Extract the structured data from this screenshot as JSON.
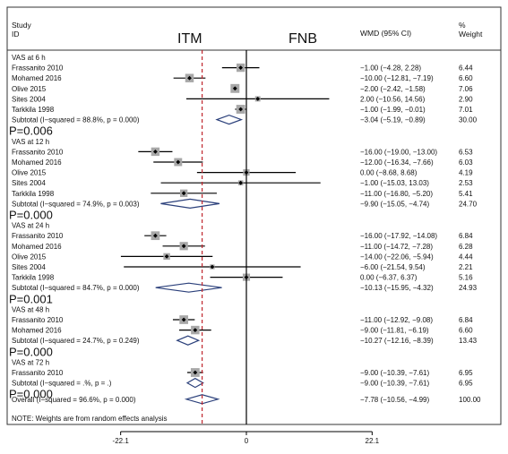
{
  "header": {
    "study_line1": "Study",
    "study_line2": "ID",
    "left_group": "ITM",
    "right_group": "FNB",
    "effect_col": "WMD (95% CI)",
    "weight_line1": "%",
    "weight_line2": "Weight"
  },
  "footer": {
    "note": "NOTE: Weights are from random effects analysis"
  },
  "chart_data": {
    "type": "forest",
    "measure": "WMD (95% CI)",
    "xaxis": {
      "ticks": [
        -22.1,
        0,
        22.1
      ],
      "tick_labels": [
        "-22.1",
        "0",
        "22.1"
      ],
      "range": [
        -22.1,
        22.1
      ]
    },
    "reference_line": 0,
    "overall_line": -7.78,
    "groups": [
      {
        "label": "VAS at 6 h",
        "studies": [
          {
            "name": "Frassanito 2010",
            "est": -1.0,
            "lo": -4.28,
            "hi": 2.28,
            "ci_text": "−1.00 (−4.28, 2.28)",
            "weight": "6.44"
          },
          {
            "name": "Mohamed 2016",
            "est": -10.0,
            "lo": -12.81,
            "hi": -7.19,
            "ci_text": "−10.00 (−12.81, −7.19)",
            "weight": "6.60"
          },
          {
            "name": "Olive 2015",
            "est": -2.0,
            "lo": -2.42,
            "hi": -1.58,
            "ci_text": "−2.00 (−2.42, −1.58)",
            "weight": "7.06"
          },
          {
            "name": "Sites 2004",
            "est": 2.0,
            "lo": -10.56,
            "hi": 14.56,
            "ci_text": "2.00 (−10.56, 14.56)",
            "weight": "2.90"
          },
          {
            "name": "Tarkkila 1998",
            "est": -1.0,
            "lo": -1.99,
            "hi": -0.01,
            "ci_text": "−1.00 (−1.99, −0.01)",
            "weight": "7.01"
          }
        ],
        "subtotal": {
          "label": "Subtotal  (I−squared = 88.8%, p = 0.000)",
          "est": -3.04,
          "lo": -5.19,
          "hi": -0.89,
          "ci_text": "−3.04 (−5.19, −0.89)",
          "weight": "30.00"
        },
        "p_label": "P=0.006"
      },
      {
        "label": "VAS at 12 h",
        "studies": [
          {
            "name": "Frassanito 2010",
            "est": -16.0,
            "lo": -19.0,
            "hi": -13.0,
            "ci_text": "−16.00 (−19.00, −13.00)",
            "weight": "6.53"
          },
          {
            "name": "Mohamed 2016",
            "est": -12.0,
            "lo": -16.34,
            "hi": -7.66,
            "ci_text": "−12.00 (−16.34, −7.66)",
            "weight": "6.03"
          },
          {
            "name": "Olive 2015",
            "est": 0.0,
            "lo": -8.68,
            "hi": 8.68,
            "ci_text": "0.00 (−8.68, 8.68)",
            "weight": "4.19"
          },
          {
            "name": "Sites 2004",
            "est": -1.0,
            "lo": -15.03,
            "hi": 13.03,
            "ci_text": "−1.00 (−15.03, 13.03)",
            "weight": "2.53"
          },
          {
            "name": "Tarkkila 1998",
            "est": -11.0,
            "lo": -16.8,
            "hi": -5.2,
            "ci_text": "−11.00 (−16.80, −5.20)",
            "weight": "5.41"
          }
        ],
        "subtotal": {
          "label": "Subtotal  (I−squared = 74.9%, p = 0.003)",
          "est": -9.9,
          "lo": -15.05,
          "hi": -4.74,
          "ci_text": "−9.90 (−15.05, −4.74)",
          "weight": "24.70"
        },
        "p_label": "P=0.000"
      },
      {
        "label": "VAS at 24 h",
        "studies": [
          {
            "name": "Frassanito 2010",
            "est": -16.0,
            "lo": -17.92,
            "hi": -14.08,
            "ci_text": "−16.00 (−17.92, −14.08)",
            "weight": "6.84"
          },
          {
            "name": "Mohamed 2016",
            "est": -11.0,
            "lo": -14.72,
            "hi": -7.28,
            "ci_text": "−11.00 (−14.72, −7.28)",
            "weight": "6.28"
          },
          {
            "name": "Olive 2015",
            "est": -14.0,
            "lo": -22.06,
            "hi": -5.94,
            "ci_text": "−14.00 (−22.06, −5.94)",
            "weight": "4.44"
          },
          {
            "name": "Sites 2004",
            "est": -6.0,
            "lo": -21.54,
            "hi": 9.54,
            "ci_text": "−6.00 (−21.54, 9.54)",
            "weight": "2.21"
          },
          {
            "name": "Tarkkila 1998",
            "est": 0.0,
            "lo": -6.37,
            "hi": 6.37,
            "ci_text": "0.00 (−6.37, 6.37)",
            "weight": "5.16"
          }
        ],
        "subtotal": {
          "label": "Subtotal  (I−squared = 84.7%, p = 0.000)",
          "est": -10.13,
          "lo": -15.95,
          "hi": -4.32,
          "ci_text": "−10.13 (−15.95, −4.32)",
          "weight": "24.93"
        },
        "p_label": "P=0.001"
      },
      {
        "label": "VAS at 48 h",
        "studies": [
          {
            "name": "Frassanito 2010",
            "est": -11.0,
            "lo": -12.92,
            "hi": -9.08,
            "ci_text": "−11.00 (−12.92, −9.08)",
            "weight": "6.84"
          },
          {
            "name": "Mohamed 2016",
            "est": -9.0,
            "lo": -11.81,
            "hi": -6.19,
            "ci_text": "−9.00 (−11.81, −6.19)",
            "weight": "6.60"
          }
        ],
        "subtotal": {
          "label": "Subtotal  (I−squared = 24.7%, p = 0.249)",
          "est": -10.27,
          "lo": -12.16,
          "hi": -8.39,
          "ci_text": "−10.27 (−12.16, −8.39)",
          "weight": "13.43"
        },
        "p_label": "P=0.000"
      },
      {
        "label": "VAS at 72 h",
        "studies": [
          {
            "name": "Frassanito 2010",
            "est": -9.0,
            "lo": -10.39,
            "hi": -7.61,
            "ci_text": "−9.00 (−10.39, −7.61)",
            "weight": "6.95"
          }
        ],
        "subtotal": {
          "label": "Subtotal  (I−squared = .%, p = .)",
          "est": -9.0,
          "lo": -10.39,
          "hi": -7.61,
          "ci_text": "−9.00 (−10.39, −7.61)",
          "weight": "6.95"
        },
        "p_label": "P=0.000"
      }
    ],
    "overall": {
      "label": "Overall  (I−squared = 96.6%, p = 0.000)",
      "est": -7.78,
      "lo": -10.56,
      "hi": -4.99,
      "ci_text": "−7.78 (−10.56, −4.99)",
      "weight": "100.00"
    }
  }
}
